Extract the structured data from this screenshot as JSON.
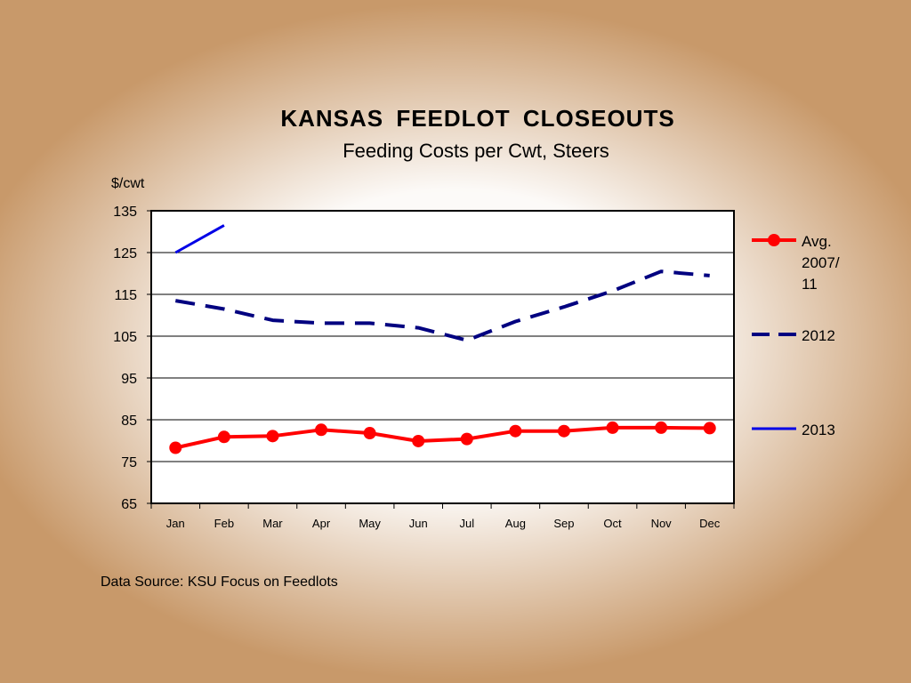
{
  "chart_data": {
    "type": "line",
    "title": "KANSAS  FEEDLOT  CLOSEOUTS",
    "subtitle": "Feeding Costs per Cwt, Steers",
    "ylabel": "$/cwt",
    "xlabel": "",
    "ylim": [
      65,
      135
    ],
    "yticks": [
      "135",
      "125",
      "115",
      "105",
      "95",
      "85",
      "75",
      "65"
    ],
    "categories": [
      "Jan",
      "Feb",
      "Mar",
      "Apr",
      "May",
      "Jun",
      "Jul",
      "Aug",
      "Sep",
      "Oct",
      "Nov",
      "Dec"
    ],
    "grid": true,
    "legend_position": "right",
    "series": [
      {
        "name": "Avg. 2007/11",
        "legend_lines": [
          "Avg.",
          "2007/",
          "11"
        ],
        "color": "#ff0000",
        "style": "solid-markers",
        "values": [
          78.3,
          80.9,
          81.1,
          82.6,
          81.8,
          79.9,
          80.4,
          82.3,
          82.3,
          83.1,
          83.1,
          83.0
        ]
      },
      {
        "name": "2012",
        "legend_lines": [
          "2012"
        ],
        "color": "#000080",
        "style": "dashed",
        "values": [
          113.5,
          111.5,
          108.8,
          108.1,
          108.1,
          107.0,
          104.0,
          108.5,
          112.0,
          115.8,
          120.5,
          119.5
        ]
      },
      {
        "name": "2013",
        "legend_lines": [
          "2013"
        ],
        "color": "#0000e6",
        "style": "solid",
        "values": [
          125.0,
          131.5,
          null,
          null,
          null,
          null,
          null,
          null,
          null,
          null,
          null,
          null
        ]
      }
    ]
  },
  "footer": {
    "source": "Data Source: KSU Focus on Feedlots"
  }
}
